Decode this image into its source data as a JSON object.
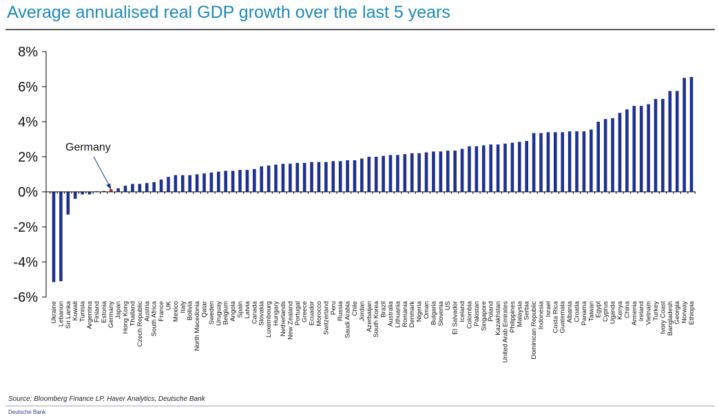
{
  "chart_data": {
    "type": "bar",
    "title": "Average annualised real GDP growth over the last 5 years",
    "xlabel": "",
    "ylabel": "",
    "ylim": [
      -6,
      8
    ],
    "yticks": [
      -6,
      -4,
      -2,
      0,
      2,
      4,
      6,
      8
    ],
    "ytick_labels": [
      "-6%",
      "-4%",
      "-2%",
      "0%",
      "2%",
      "4%",
      "6%",
      "8%"
    ],
    "grid": false,
    "legend": "none",
    "bar_color": "#1f3190",
    "highlight_color": "#c0282d",
    "highlight_category": "Germany",
    "annotation": {
      "text": "Germany",
      "target": "Germany"
    },
    "categories": [
      "Ukraine",
      "Lebanon",
      "Sri Lanka",
      "Kuwait",
      "Tunisia",
      "Argentina",
      "Finland",
      "Estonia",
      "Germany",
      "Japan",
      "Hong Kong",
      "Thailand",
      "Czech Republic",
      "Austria",
      "South Africa",
      "France",
      "UK",
      "Mexico",
      "Italy",
      "Bolivia",
      "North Macedonia",
      "Qatar",
      "Sweden",
      "Uruguay",
      "Belgium",
      "Angola",
      "Spain",
      "Latvia",
      "Canada",
      "Slovakia",
      "Luxembourg",
      "Hungary",
      "Netherlands",
      "New Zealand",
      "Portugal",
      "Greece",
      "Ecuador",
      "Morocco",
      "Switzerland",
      "Peru",
      "Russia",
      "Saudi Arabia",
      "Chile",
      "Jordan",
      "Azerbaijan",
      "South Korea",
      "Brazil",
      "Australia",
      "Lithuania",
      "Romania",
      "Denmark",
      "Nigeria",
      "Oman",
      "Bulgaria",
      "Slovenia",
      "US",
      "El Salvador",
      "Iceland",
      "Colombia",
      "Pakistan",
      "Singapore",
      "Poland",
      "Kazakhstan",
      "United Arab Emirates",
      "Philippines",
      "Malaysia",
      "Serbia",
      "Dominican Republic",
      "Indonesia",
      "Israel",
      "Costa Rica",
      "Guatemala",
      "Albania",
      "Croatia",
      "Panama",
      "Taiwan",
      "Egypt",
      "Cyprus",
      "Uganda",
      "Kenya",
      "China",
      "Armenia",
      "Ireland",
      "Vietnam",
      "Turkey",
      "Ivory Coast",
      "Bangladesh",
      "Georgia",
      "Norway",
      "Ethiopia"
    ],
    "values": [
      -5.15,
      -5.1,
      -1.3,
      -0.4,
      -0.15,
      -0.15,
      0.02,
      0.05,
      0.15,
      0.2,
      0.35,
      0.45,
      0.45,
      0.5,
      0.55,
      0.7,
      0.85,
      0.95,
      0.95,
      0.95,
      1.0,
      1.05,
      1.1,
      1.15,
      1.2,
      1.2,
      1.25,
      1.25,
      1.3,
      1.45,
      1.5,
      1.55,
      1.6,
      1.6,
      1.65,
      1.65,
      1.7,
      1.7,
      1.7,
      1.75,
      1.75,
      1.8,
      1.8,
      1.9,
      2.0,
      2.0,
      2.05,
      2.1,
      2.1,
      2.15,
      2.2,
      2.2,
      2.25,
      2.3,
      2.3,
      2.35,
      2.35,
      2.45,
      2.6,
      2.6,
      2.65,
      2.7,
      2.7,
      2.75,
      2.8,
      2.85,
      2.9,
      3.35,
      3.35,
      3.4,
      3.4,
      3.4,
      3.45,
      3.45,
      3.45,
      3.55,
      4.0,
      4.15,
      4.2,
      4.5,
      4.7,
      4.9,
      4.9,
      5.0,
      5.3,
      5.3,
      5.75,
      5.75,
      6.5,
      6.55
    ]
  },
  "header": {
    "title": "Average annualised real GDP growth over the last 5 years"
  },
  "footer": {
    "source": "Source: Bloomberg Finance LP, Haver Analytics, Deutsche Bank",
    "brand": "Deutsche Bank"
  }
}
